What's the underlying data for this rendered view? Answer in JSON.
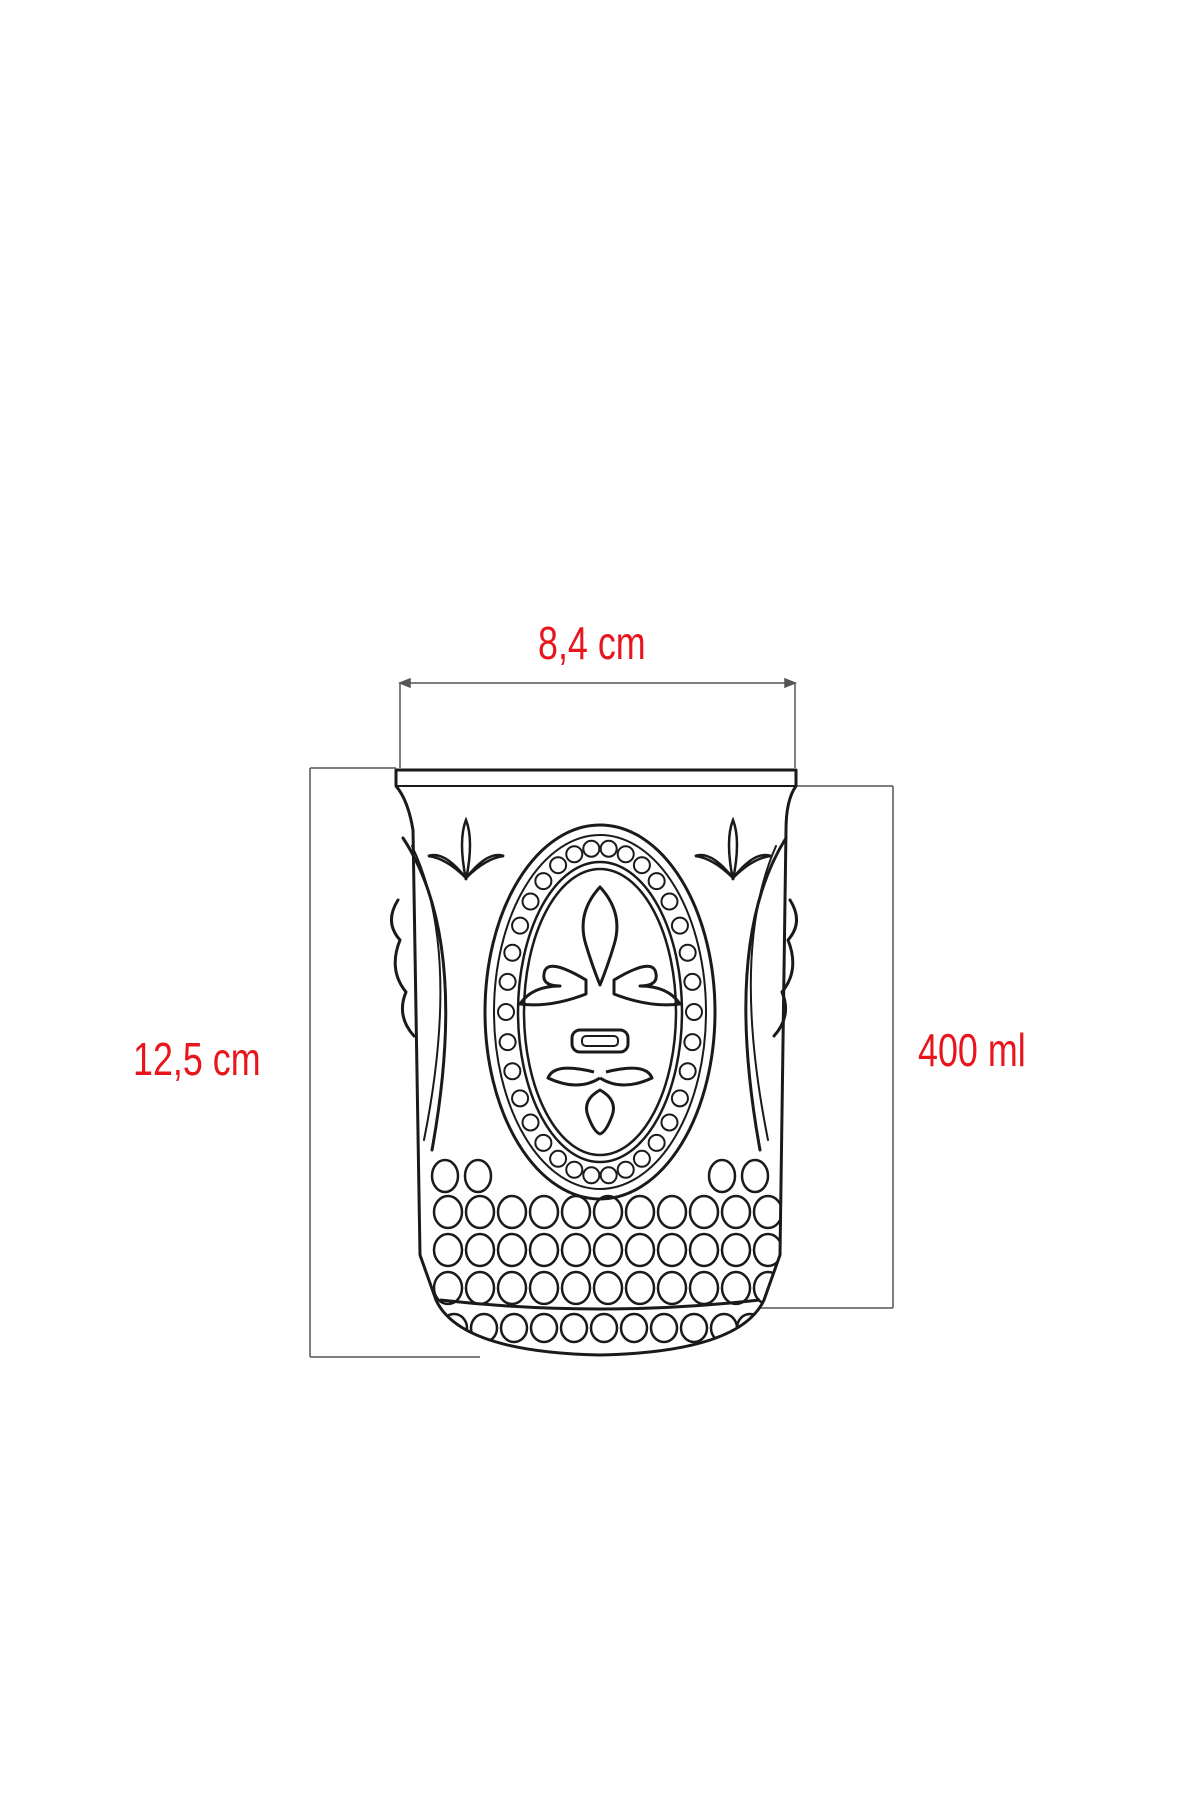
{
  "dimensions": {
    "width": "8,4 cm",
    "height": "12,5 cm",
    "volume": "400 ml"
  },
  "colors": {
    "label": "#e8161c",
    "outline": "#1a1a1a",
    "dimension_line": "#555555"
  }
}
